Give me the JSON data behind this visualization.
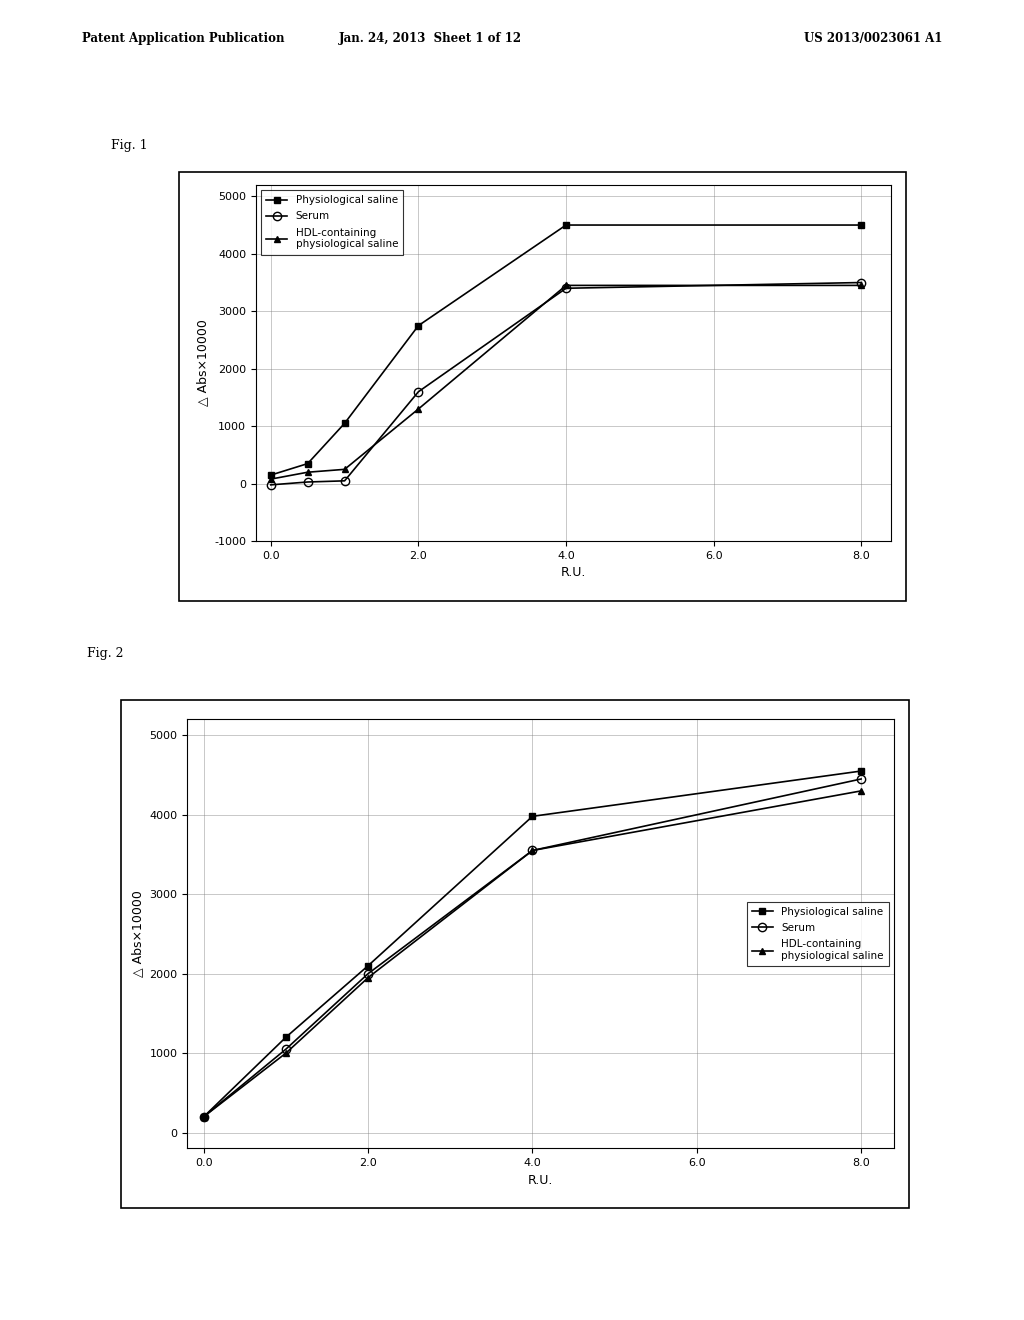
{
  "fig1_label": "Fig. 1",
  "fig2_label": "Fig. 2",
  "header_left": "Patent Application Publication",
  "header_mid": "Jan. 24, 2013  Sheet 1 of 12",
  "header_right": "US 2013/0023061 A1",
  "fig1": {
    "series": [
      {
        "label": "Physiological saline",
        "x": [
          0.0,
          0.5,
          1.0,
          2.0,
          4.0,
          8.0
        ],
        "y": [
          150,
          350,
          1050,
          2750,
          4500,
          4500
        ],
        "marker": "s",
        "markersize": 5,
        "color": "black",
        "fillstyle": "full",
        "linewidth": 1.2
      },
      {
        "label": "Serum",
        "x": [
          0.0,
          0.5,
          1.0,
          2.0,
          4.0,
          8.0
        ],
        "y": [
          -20,
          30,
          50,
          1600,
          3400,
          3500
        ],
        "marker": "o",
        "markersize": 6,
        "color": "black",
        "fillstyle": "none",
        "linewidth": 1.2
      },
      {
        "label": "HDL-containing\nphysiological saline",
        "x": [
          0.0,
          0.5,
          1.0,
          2.0,
          4.0,
          8.0
        ],
        "y": [
          80,
          200,
          250,
          1300,
          3450,
          3450
        ],
        "marker": "^",
        "markersize": 5,
        "color": "black",
        "fillstyle": "full",
        "linewidth": 1.2
      }
    ],
    "xlabel": "R.U.",
    "ylabel": "△ Abs×10000",
    "xlim": [
      -0.2,
      8.4
    ],
    "ylim": [
      -1000,
      5200
    ],
    "xticks": [
      0.0,
      2.0,
      4.0,
      6.0,
      8.0
    ],
    "xticklabels": [
      "0.0",
      "2.0",
      "4.0",
      "6.0",
      "8.0"
    ],
    "yticks": [
      -1000,
      0,
      1000,
      2000,
      3000,
      4000,
      5000
    ],
    "yticklabels": [
      "-1000",
      "0",
      "1000",
      "2000",
      "3000",
      "4000",
      "5000"
    ],
    "legend_loc": "upper left",
    "grid": true
  },
  "fig2": {
    "series": [
      {
        "label": "Physiological saline",
        "x": [
          0.0,
          1.0,
          2.0,
          4.0,
          8.0
        ],
        "y": [
          200,
          1200,
          2100,
          3980,
          4550
        ],
        "marker": "s",
        "markersize": 5,
        "color": "black",
        "fillstyle": "full",
        "linewidth": 1.2
      },
      {
        "label": "Serum",
        "x": [
          0.0,
          1.0,
          2.0,
          4.0,
          8.0
        ],
        "y": [
          200,
          1050,
          2000,
          3550,
          4450
        ],
        "marker": "o",
        "markersize": 6,
        "color": "black",
        "fillstyle": "none",
        "linewidth": 1.2
      },
      {
        "label": "HDL-containing\nphysiological saline",
        "x": [
          0.0,
          1.0,
          2.0,
          4.0,
          8.0
        ],
        "y": [
          200,
          1000,
          1950,
          3550,
          4300
        ],
        "marker": "^",
        "markersize": 5,
        "color": "black",
        "fillstyle": "full",
        "linewidth": 1.2
      }
    ],
    "xlabel": "R.U.",
    "ylabel": "△ Abs×10000",
    "xlim": [
      -0.2,
      8.4
    ],
    "ylim": [
      -200,
      5200
    ],
    "xticks": [
      0.0,
      2.0,
      4.0,
      6.0,
      8.0
    ],
    "xticklabels": [
      "0.0",
      "2.0",
      "4.0",
      "6.0",
      "8.0"
    ],
    "yticks": [
      0,
      1000,
      2000,
      3000,
      4000,
      5000
    ],
    "yticklabels": [
      "0",
      "1000",
      "2000",
      "3000",
      "4000",
      "5000"
    ],
    "legend_loc": "center right",
    "grid": true
  },
  "plot_bg_color": "white",
  "tick_font_size": 8,
  "label_font_size": 9,
  "legend_font_size": 7.5,
  "fig_label_font_size": 9,
  "header_font_size": 8.5
}
